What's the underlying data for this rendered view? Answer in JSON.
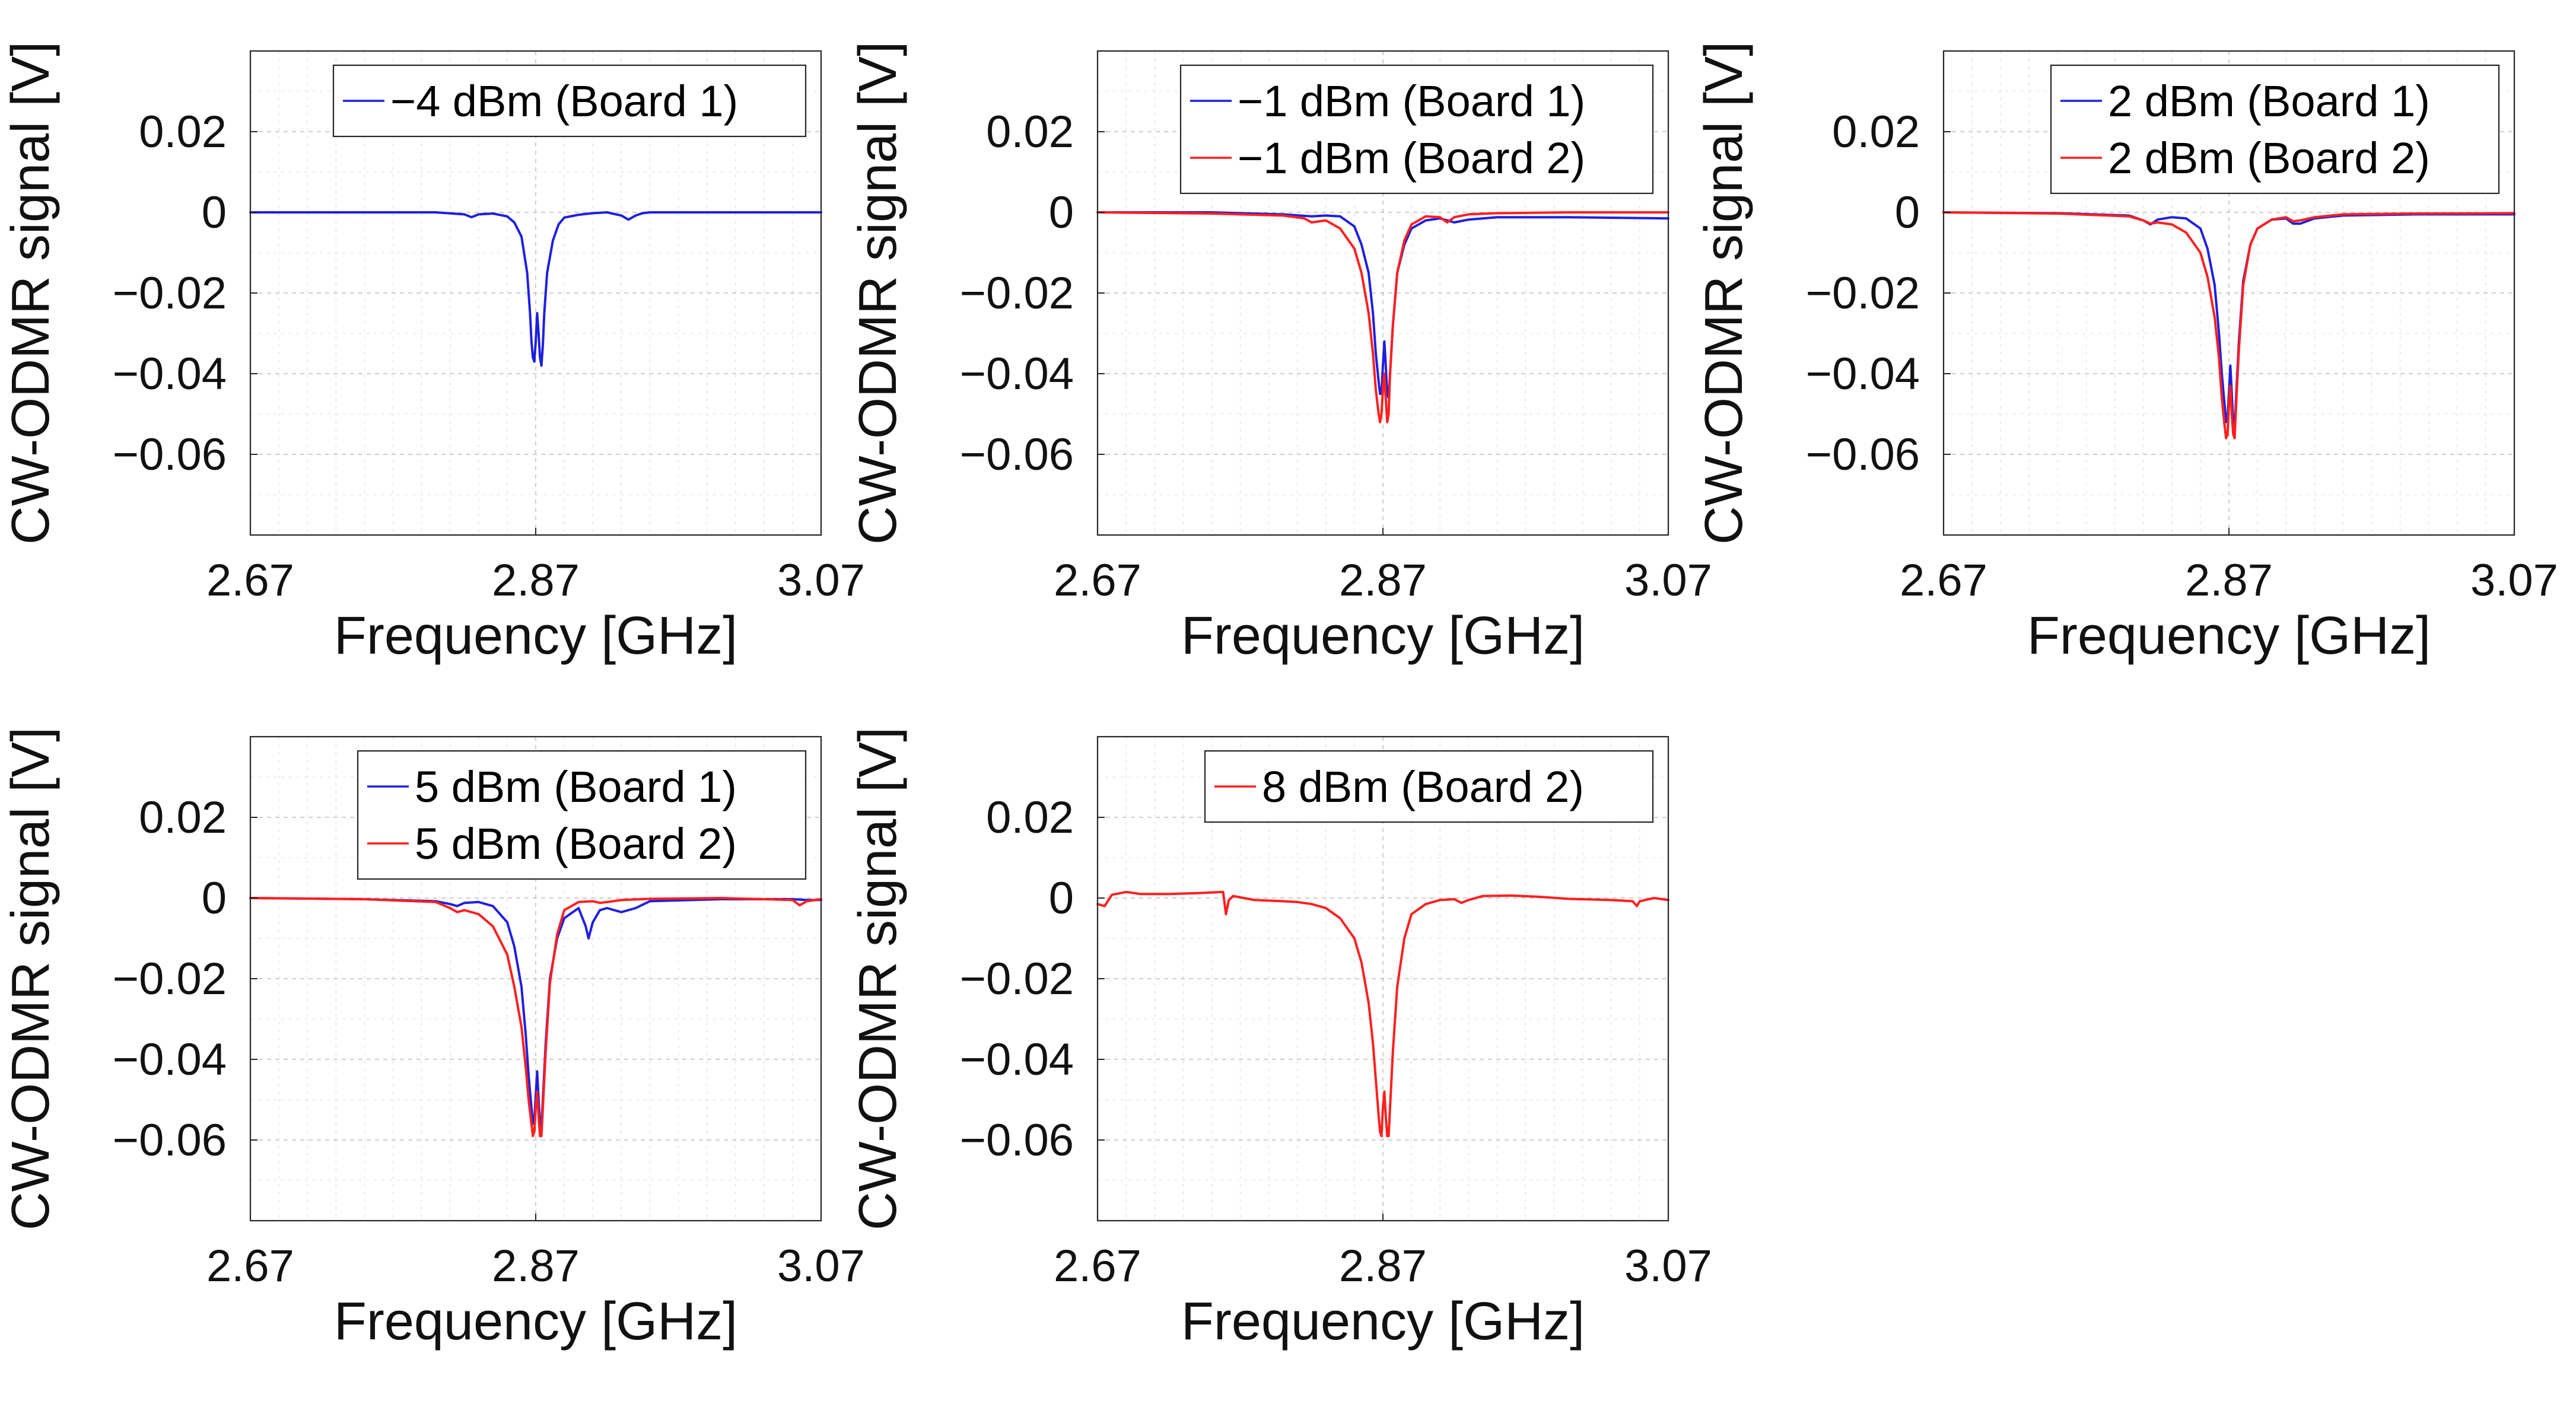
{
  "colors": {
    "board1": "#1f1fe0",
    "board2": "#ff1f1f",
    "axis": "#262626",
    "grid": "#bdbdbd"
  },
  "chart_data": [
    {
      "type": "line",
      "xlabel": "Frequency [GHz]",
      "ylabel": "CW-ODMR signal [V]",
      "xlim": [
        2.67,
        3.07
      ],
      "ylim": [
        -0.08,
        0.04
      ],
      "xticks": [
        "2.67",
        "2.87",
        "3.07"
      ],
      "yticks": [
        "0.02",
        "0",
        "-0.02",
        "-0.04",
        "-0.06"
      ],
      "ytick_values": [
        0.02,
        0,
        -0.02,
        -0.04,
        -0.06
      ],
      "grid": true,
      "legend": "top-right",
      "series": [
        {
          "name": "−4 dBm (Board 1)",
          "color": "#1f1fe0",
          "x": [
            2.67,
            2.8,
            2.82,
            2.825,
            2.83,
            2.84,
            2.85,
            2.855,
            2.86,
            2.864,
            2.866,
            2.867,
            2.868,
            2.869,
            2.87,
            2.871,
            2.872,
            2.873,
            2.874,
            2.875,
            2.876,
            2.878,
            2.882,
            2.886,
            2.89,
            2.9,
            2.91,
            2.92,
            2.93,
            2.935,
            2.94,
            2.945,
            2.95,
            2.96,
            3.07
          ],
          "y": [
            0,
            0,
            -0.0005,
            -0.0012,
            -0.0005,
            -0.0003,
            -0.001,
            -0.0025,
            -0.006,
            -0.015,
            -0.025,
            -0.032,
            -0.036,
            -0.037,
            -0.032,
            -0.025,
            -0.03,
            -0.036,
            -0.038,
            -0.033,
            -0.025,
            -0.015,
            -0.007,
            -0.003,
            -0.0013,
            -0.0006,
            -0.0002,
            0,
            -0.0008,
            -0.0018,
            -0.0008,
            -0.0002,
            0,
            0,
            0
          ]
        }
      ]
    },
    {
      "type": "line",
      "xlabel": "Frequency [GHz]",
      "ylabel": "CW-ODMR signal [V]",
      "xlim": [
        2.67,
        3.07
      ],
      "ylim": [
        -0.08,
        0.04
      ],
      "xticks": [
        "2.67",
        "2.87",
        "3.07"
      ],
      "yticks": [
        "0.02",
        "0",
        "-0.02",
        "-0.04",
        "-0.06"
      ],
      "ytick_values": [
        0.02,
        0,
        -0.02,
        -0.04,
        -0.06
      ],
      "grid": true,
      "legend": "top-right",
      "series": [
        {
          "name": "−1 dBm (Board 1)",
          "color": "#1f1fe0",
          "x": [
            2.67,
            2.75,
            2.8,
            2.82,
            2.83,
            2.84,
            2.85,
            2.855,
            2.86,
            2.863,
            2.865,
            2.867,
            2.868,
            2.869,
            2.87,
            2.871,
            2.872,
            2.873,
            2.874,
            2.875,
            2.877,
            2.88,
            2.885,
            2.89,
            2.9,
            2.91,
            2.915,
            2.92,
            2.93,
            2.95,
            3.0,
            3.07
          ],
          "y": [
            0,
            0,
            -0.0005,
            -0.001,
            -0.0008,
            -0.001,
            -0.0035,
            -0.008,
            -0.015,
            -0.025,
            -0.035,
            -0.042,
            -0.045,
            -0.045,
            -0.038,
            -0.032,
            -0.038,
            -0.045,
            -0.046,
            -0.04,
            -0.028,
            -0.015,
            -0.008,
            -0.004,
            -0.002,
            -0.0015,
            -0.002,
            -0.0025,
            -0.0018,
            -0.0012,
            -0.0012,
            -0.0015
          ]
        },
        {
          "name": "−1 dBm (Board 2)",
          "color": "#ff1f1f",
          "x": [
            2.67,
            2.75,
            2.8,
            2.815,
            2.82,
            2.83,
            2.84,
            2.85,
            2.855,
            2.86,
            2.863,
            2.865,
            2.867,
            2.868,
            2.869,
            2.87,
            2.871,
            2.872,
            2.873,
            2.874,
            2.875,
            2.877,
            2.88,
            2.885,
            2.89,
            2.9,
            2.91,
            2.915,
            2.92,
            2.93,
            2.95,
            3.0,
            3.07
          ],
          "y": [
            0,
            -0.0003,
            -0.0008,
            -0.0015,
            -0.0025,
            -0.002,
            -0.004,
            -0.009,
            -0.015,
            -0.025,
            -0.035,
            -0.044,
            -0.05,
            -0.052,
            -0.05,
            -0.044,
            -0.04,
            -0.046,
            -0.052,
            -0.05,
            -0.04,
            -0.028,
            -0.015,
            -0.007,
            -0.003,
            -0.001,
            -0.0012,
            -0.0025,
            -0.0012,
            -0.0005,
            -0.0002,
            0,
            0
          ]
        }
      ]
    },
    {
      "type": "line",
      "xlabel": "Frequency [GHz]",
      "ylabel": "CW-ODMR signal [V]",
      "xlim": [
        2.67,
        3.07
      ],
      "ylim": [
        -0.08,
        0.04
      ],
      "xticks": [
        "2.67",
        "2.87",
        "3.07"
      ],
      "yticks": [
        "0.02",
        "0",
        "-0.02",
        "-0.04",
        "-0.06"
      ],
      "ytick_values": [
        0.02,
        0,
        -0.02,
        -0.04,
        -0.06
      ],
      "grid": true,
      "legend": "top-right",
      "series": [
        {
          "name": "2 dBm (Board 1)",
          "color": "#1f1fe0",
          "x": [
            2.67,
            2.75,
            2.8,
            2.81,
            2.815,
            2.82,
            2.83,
            2.84,
            2.85,
            2.855,
            2.86,
            2.863,
            2.865,
            2.867,
            2.868,
            2.869,
            2.87,
            2.871,
            2.872,
            2.873,
            2.874,
            2.875,
            2.877,
            2.88,
            2.885,
            2.89,
            2.9,
            2.91,
            2.915,
            2.92,
            2.93,
            2.95,
            3.0,
            3.07
          ],
          "y": [
            0,
            -0.0002,
            -0.0008,
            -0.002,
            -0.003,
            -0.0018,
            -0.0012,
            -0.0015,
            -0.004,
            -0.009,
            -0.018,
            -0.03,
            -0.04,
            -0.048,
            -0.052,
            -0.051,
            -0.045,
            -0.038,
            -0.045,
            -0.052,
            -0.054,
            -0.046,
            -0.032,
            -0.017,
            -0.008,
            -0.004,
            -0.0018,
            -0.0015,
            -0.0028,
            -0.0028,
            -0.0015,
            -0.0008,
            -0.0005,
            -0.0005
          ]
        },
        {
          "name": "2 dBm (Board 2)",
          "color": "#ff1f1f",
          "x": [
            2.67,
            2.75,
            2.8,
            2.81,
            2.815,
            2.82,
            2.83,
            2.84,
            2.85,
            2.855,
            2.86,
            2.863,
            2.865,
            2.867,
            2.868,
            2.869,
            2.87,
            2.871,
            2.872,
            2.873,
            2.874,
            2.875,
            2.877,
            2.88,
            2.885,
            2.89,
            2.9,
            2.91,
            2.915,
            2.92,
            2.93,
            2.95,
            3.0,
            3.07
          ],
          "y": [
            0,
            -0.0003,
            -0.001,
            -0.002,
            -0.0028,
            -0.0025,
            -0.003,
            -0.005,
            -0.01,
            -0.016,
            -0.026,
            -0.036,
            -0.046,
            -0.053,
            -0.056,
            -0.055,
            -0.048,
            -0.043,
            -0.05,
            -0.055,
            -0.056,
            -0.048,
            -0.034,
            -0.018,
            -0.008,
            -0.004,
            -0.0018,
            -0.0012,
            -0.0022,
            -0.002,
            -0.0012,
            -0.0005,
            -0.0003,
            -0.0002
          ]
        }
      ]
    },
    {
      "type": "line",
      "xlabel": "Frequency [GHz]",
      "ylabel": "CW-ODMR signal [V]",
      "xlim": [
        2.67,
        3.07
      ],
      "ylim": [
        -0.08,
        0.04
      ],
      "xticks": [
        "2.67",
        "2.87",
        "3.07"
      ],
      "yticks": [
        "0.02",
        "0",
        "-0.02",
        "-0.04",
        "-0.06"
      ],
      "ytick_values": [
        0.02,
        0,
        -0.02,
        -0.04,
        -0.06
      ],
      "grid": true,
      "legend": "top-right",
      "series": [
        {
          "name": "5 dBm (Board 1)",
          "color": "#1f1fe0",
          "x": [
            2.67,
            2.75,
            2.8,
            2.81,
            2.815,
            2.82,
            2.83,
            2.84,
            2.85,
            2.855,
            2.86,
            2.863,
            2.865,
            2.867,
            2.868,
            2.869,
            2.87,
            2.871,
            2.872,
            2.873,
            2.874,
            2.875,
            2.877,
            2.88,
            2.885,
            2.89,
            2.9,
            2.905,
            2.907,
            2.91,
            2.915,
            2.92,
            2.93,
            2.94,
            2.95,
            3.0,
            3.05,
            3.06,
            3.07
          ],
          "y": [
            0,
            -0.0003,
            -0.0008,
            -0.0015,
            -0.002,
            -0.0012,
            -0.001,
            -0.002,
            -0.006,
            -0.012,
            -0.022,
            -0.034,
            -0.044,
            -0.052,
            -0.056,
            -0.055,
            -0.049,
            -0.043,
            -0.05,
            -0.056,
            -0.057,
            -0.05,
            -0.036,
            -0.02,
            -0.01,
            -0.005,
            -0.0025,
            -0.007,
            -0.01,
            -0.006,
            -0.003,
            -0.0025,
            -0.0035,
            -0.0025,
            -0.0008,
            -0.0003,
            -0.0003,
            -0.0005,
            -0.0005
          ]
        },
        {
          "name": "5 dBm (Board 2)",
          "color": "#ff1f1f",
          "x": [
            2.67,
            2.75,
            2.8,
            2.81,
            2.815,
            2.82,
            2.83,
            2.84,
            2.85,
            2.855,
            2.86,
            2.863,
            2.865,
            2.867,
            2.868,
            2.869,
            2.87,
            2.871,
            2.872,
            2.873,
            2.874,
            2.875,
            2.877,
            2.88,
            2.885,
            2.89,
            2.9,
            2.91,
            2.915,
            2.92,
            2.93,
            2.95,
            3.0,
            3.05,
            3.055,
            3.06,
            3.07
          ],
          "y": [
            0,
            -0.0003,
            -0.001,
            -0.0025,
            -0.0035,
            -0.003,
            -0.004,
            -0.007,
            -0.014,
            -0.022,
            -0.032,
            -0.042,
            -0.05,
            -0.056,
            -0.059,
            -0.058,
            -0.052,
            -0.048,
            -0.054,
            -0.059,
            -0.059,
            -0.052,
            -0.038,
            -0.021,
            -0.009,
            -0.003,
            -0.001,
            -0.0008,
            -0.0012,
            -0.001,
            -0.0005,
            -0.0002,
            0,
            -0.0005,
            -0.0018,
            -0.0008,
            -0.0003
          ]
        }
      ]
    },
    {
      "type": "line",
      "xlabel": "Frequency [GHz]",
      "ylabel": "CW-ODMR signal [V]",
      "xlim": [
        2.67,
        3.07
      ],
      "ylim": [
        -0.08,
        0.04
      ],
      "xticks": [
        "2.67",
        "2.87",
        "3.07"
      ],
      "yticks": [
        "0.02",
        "0",
        "-0.02",
        "-0.04",
        "-0.06"
      ],
      "ytick_values": [
        0.02,
        0,
        -0.02,
        -0.04,
        -0.06
      ],
      "grid": true,
      "legend": "top-right",
      "series": [
        {
          "name": "8 dBm (Board 2)",
          "color": "#ff1f1f",
          "x": [
            2.67,
            2.675,
            2.68,
            2.69,
            2.7,
            2.72,
            2.74,
            2.758,
            2.76,
            2.762,
            2.765,
            2.78,
            2.8,
            2.81,
            2.82,
            2.83,
            2.84,
            2.85,
            2.855,
            2.86,
            2.863,
            2.865,
            2.867,
            2.868,
            2.869,
            2.87,
            2.871,
            2.872,
            2.873,
            2.874,
            2.875,
            2.877,
            2.88,
            2.885,
            2.89,
            2.9,
            2.91,
            2.92,
            2.925,
            2.93,
            2.94,
            2.96,
            2.98,
            3.0,
            3.03,
            3.045,
            3.048,
            3.05,
            3.06,
            3.07
          ],
          "y": [
            -0.0015,
            -0.002,
            0.0008,
            0.0015,
            0.001,
            0.001,
            0.0012,
            0.0015,
            -0.004,
            -0.0005,
            0.0005,
            -0.0005,
            -0.0008,
            -0.001,
            -0.0015,
            -0.0025,
            -0.005,
            -0.01,
            -0.016,
            -0.026,
            -0.036,
            -0.045,
            -0.054,
            -0.058,
            -0.059,
            -0.052,
            -0.048,
            -0.054,
            -0.059,
            -0.059,
            -0.052,
            -0.038,
            -0.022,
            -0.01,
            -0.004,
            -0.0015,
            -0.0005,
            -0.0003,
            -0.0012,
            -0.0005,
            0.0005,
            0.0006,
            0.0003,
            -0.0002,
            -0.0005,
            -0.0008,
            -0.002,
            -0.0008,
            0,
            -0.0005
          ]
        }
      ]
    }
  ]
}
